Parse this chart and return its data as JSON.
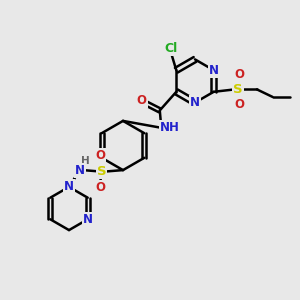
{
  "bg_color": "#e8e8e8",
  "atom_colors": {
    "C": "#000000",
    "N": "#2222cc",
    "O": "#cc2222",
    "S": "#cccc00",
    "Cl": "#22aa22",
    "H": "#666666"
  },
  "bond_color": "#000000",
  "bond_width": 1.8,
  "font_size": 8.5,
  "fig_size": [
    3.0,
    3.0
  ],
  "dpi": 100,
  "xlim": [
    0,
    10
  ],
  "ylim": [
    0,
    10
  ]
}
